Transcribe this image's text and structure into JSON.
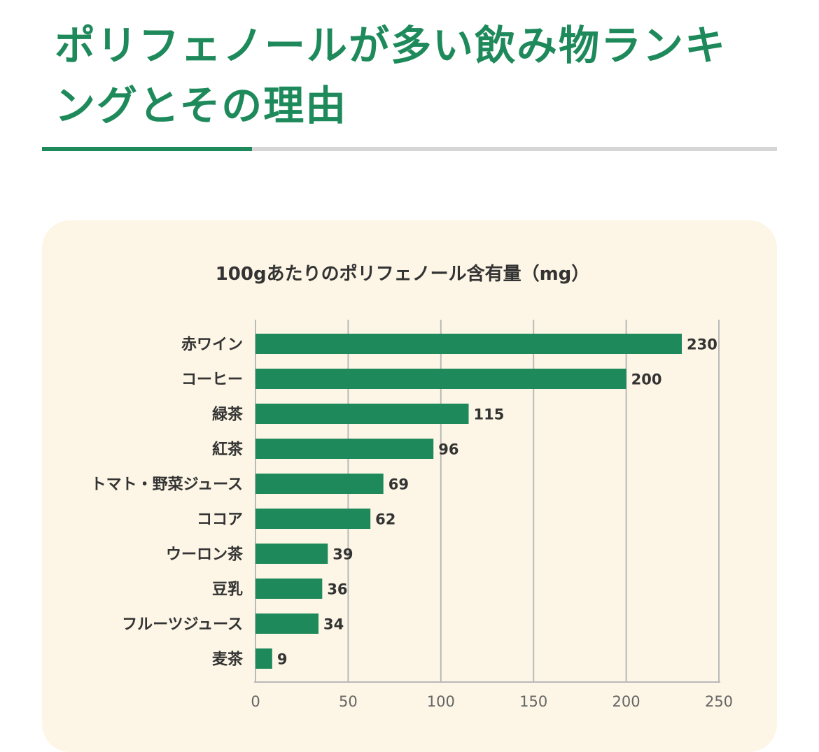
{
  "heading": {
    "title": "ポリフェノールが多い飲み物ランキングとその理由"
  },
  "colors": {
    "accent": "#1e8a5b",
    "bar": "#1e8a5b",
    "panel_background": "#fdf6e6",
    "rule_gray": "#d6d6d6",
    "gridline": "#b9b9b9"
  },
  "chart_data": {
    "type": "bar",
    "orientation": "horizontal",
    "title": "100gあたりのポリフェノール含有量（mg）",
    "categories": [
      "赤ワイン",
      "コーヒー",
      "緑茶",
      "紅茶",
      "トマト・野菜ジュース",
      "ココア",
      "ウーロン茶",
      "豆乳",
      "フルーツジュース",
      "麦茶"
    ],
    "values": [
      230,
      200,
      115,
      96,
      69,
      62,
      39,
      36,
      34,
      9
    ],
    "xlim": [
      0,
      250
    ],
    "xticks": [
      0,
      50,
      100,
      150,
      200,
      250
    ],
    "grid": true,
    "data_labels": true,
    "legend": false
  }
}
